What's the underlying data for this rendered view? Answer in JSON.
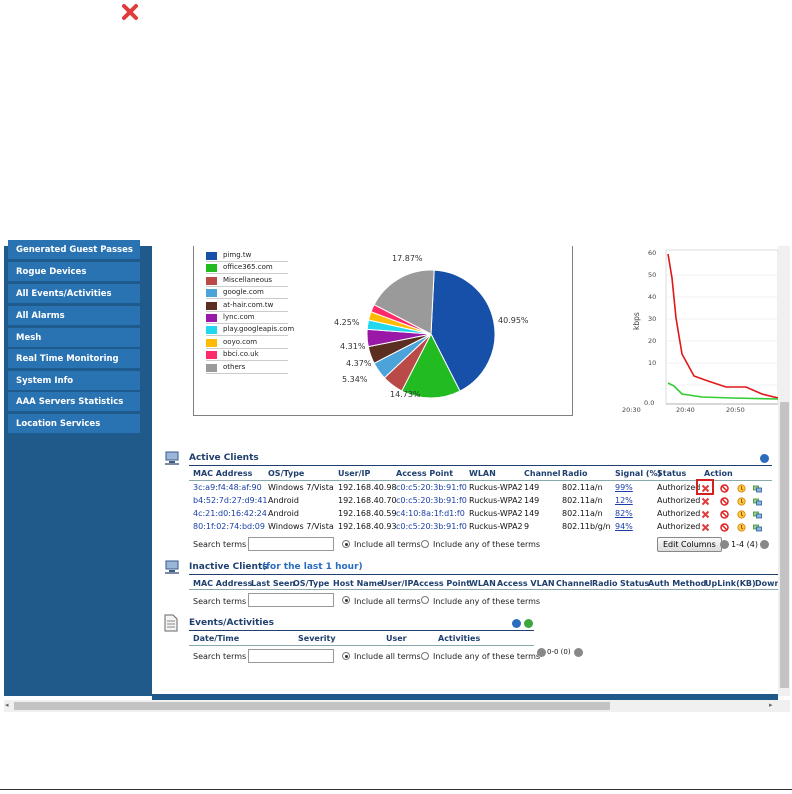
{
  "colors": {
    "sidebar_bg": "#1f5a8a",
    "sidebar_item": "#2a73b3",
    "section_title": "#1f3f6e",
    "link": "#1a3fa6",
    "close_red": "#e23b3b"
  },
  "sidebar": {
    "items": [
      {
        "label": "Generated Guest Passes"
      },
      {
        "label": "Rogue Devices"
      },
      {
        "label": "All Events/Activities"
      },
      {
        "label": "All Alarms"
      },
      {
        "label": "Mesh"
      },
      {
        "label": "Real Time Monitoring"
      },
      {
        "label": "System Info"
      },
      {
        "label": "AAA Servers Statistics"
      },
      {
        "label": "Location Services"
      }
    ]
  },
  "pie_chart": {
    "legend": [
      "pimg.tw",
      "office365.com",
      "Miscellaneous",
      "google.com",
      "at-hair.com.tw",
      "lync.com",
      "play.googleapis.com",
      "ooyo.com",
      "bbci.co.uk",
      "others"
    ],
    "labels": [
      "40.95%",
      "14.73%",
      "5.34%",
      "4.37%",
      "4.31%",
      "4.25%",
      "17.87%"
    ]
  },
  "chart_data": {
    "type": "pie",
    "categories": [
      "pimg.tw",
      "office365.com",
      "Miscellaneous",
      "google.com",
      "at-hair.com.tw",
      "lync.com",
      "play.googleapis.com",
      "ooyo.com",
      "bbci.co.uk",
      "others"
    ],
    "values": [
      40.95,
      14.73,
      5.34,
      4.37,
      4.31,
      4.25,
      2.3,
      2.1,
      1.9,
      17.87
    ],
    "colors": [
      "#1750a8",
      "#22bb22",
      "#b94a48",
      "#4ba3d9",
      "#5a2e20",
      "#9a18a8",
      "#22d8ee",
      "#ffbb00",
      "#ff2a6a",
      "#9a9a9a"
    ]
  },
  "line_chart": {
    "ylabel": "kbps",
    "yticks": [
      "60",
      "50",
      "40",
      "30",
      "20",
      "10",
      "0.0"
    ],
    "xticks": [
      "20:30",
      "20:40",
      "20:50"
    ]
  },
  "active_clients": {
    "title": "Active Clients",
    "columns": [
      "MAC Address",
      "OS/Type",
      "User/IP",
      "Access Point",
      "WLAN",
      "Channel",
      "Radio",
      "Signal (%)",
      "Status",
      "Action"
    ],
    "rows": [
      {
        "mac": "3c:a9:f4:48:af:90",
        "os": "Windows 7/Vista",
        "ip": "192.168.40.98",
        "ap": "c0:c5:20:3b:91:f0",
        "wlan": "Ruckus-WPA2",
        "channel": "149",
        "radio": "802.11a/n",
        "signal": "99%",
        "status": "Authorized"
      },
      {
        "mac": "b4:52:7d:27:d9:41",
        "os": "Android",
        "ip": "192.168.40.70",
        "ap": "c0:c5:20:3b:91:f0",
        "wlan": "Ruckus-WPA2",
        "channel": "149",
        "radio": "802.11a/n",
        "signal": "12%",
        "status": "Authorized"
      },
      {
        "mac": "4c:21:d0:16:42:24",
        "os": "Android",
        "ip": "192.168.40.59",
        "ap": "c4:10:8a:1f:d1:f0",
        "wlan": "Ruckus-WPA2",
        "channel": "149",
        "radio": "802.11a/n",
        "signal": "82%",
        "status": "Authorized"
      },
      {
        "mac": "80:1f:02:74:bd:09",
        "os": "Windows 7/Vista",
        "ip": "192.168.40.93",
        "ap": "c0:c5:20:3b:91:f0",
        "wlan": "Ruckus-WPA2",
        "channel": "9",
        "radio": "802.11b/g/n",
        "signal": "94%",
        "status": "Authorized"
      }
    ],
    "search_label": "Search terms",
    "include_all": "Include all terms",
    "include_any": "Include any of these terms",
    "edit_columns": "Edit Columns",
    "pager": "1-4 (4)"
  },
  "inactive_clients": {
    "title": "Inactive Clients",
    "subtitle": "(for the last 1 hour)",
    "columns": [
      "MAC Address",
      "Last Seen",
      "OS/Type",
      "Host Name",
      "User/IP",
      "Access Point",
      "WLAN",
      "Access VLAN",
      "Channel",
      "Radio",
      "Status",
      "Auth Method",
      "UpLink(KB)",
      "Down"
    ],
    "search_label": "Search terms",
    "include_all": "Include all terms",
    "include_any": "Include any of these terms"
  },
  "events": {
    "title": "Events/Activities",
    "columns": [
      "Date/Time",
      "Severity",
      "User",
      "Activities"
    ],
    "search_label": "Search terms",
    "include_all": "Include all terms",
    "include_any": "Include any of these terms",
    "pager": "0-0 (0)"
  }
}
